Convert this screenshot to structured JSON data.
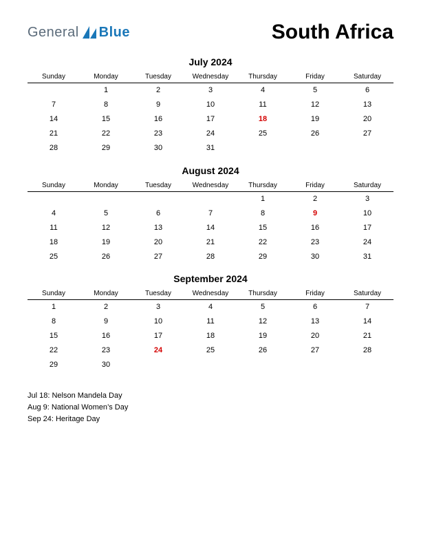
{
  "logo": {
    "word1": "General",
    "word2": "Blue",
    "color1": "#5b6b7a",
    "color2": "#1a77b8",
    "shape_color": "#1a77b8"
  },
  "title": "South Africa",
  "day_headers": [
    "Sunday",
    "Monday",
    "Tuesday",
    "Wednesday",
    "Thursday",
    "Friday",
    "Saturday"
  ],
  "months": [
    {
      "title": "July 2024",
      "weeks": [
        [
          "",
          "1",
          "2",
          "3",
          "4",
          "5",
          "6"
        ],
        [
          "7",
          "8",
          "9",
          "10",
          "11",
          "12",
          "13"
        ],
        [
          "14",
          "15",
          "16",
          "17",
          "18",
          "19",
          "20"
        ],
        [
          "21",
          "22",
          "23",
          "24",
          "25",
          "26",
          "27"
        ],
        [
          "28",
          "29",
          "30",
          "31",
          "",
          "",
          ""
        ]
      ],
      "holidays": [
        [
          2,
          4
        ]
      ]
    },
    {
      "title": "August 2024",
      "weeks": [
        [
          "",
          "",
          "",
          "",
          "1",
          "2",
          "3"
        ],
        [
          "4",
          "5",
          "6",
          "7",
          "8",
          "9",
          "10"
        ],
        [
          "11",
          "12",
          "13",
          "14",
          "15",
          "16",
          "17"
        ],
        [
          "18",
          "19",
          "20",
          "21",
          "22",
          "23",
          "24"
        ],
        [
          "25",
          "26",
          "27",
          "28",
          "29",
          "30",
          "31"
        ]
      ],
      "holidays": [
        [
          1,
          5
        ]
      ]
    },
    {
      "title": "September 2024",
      "weeks": [
        [
          "1",
          "2",
          "3",
          "4",
          "5",
          "6",
          "7"
        ],
        [
          "8",
          "9",
          "10",
          "11",
          "12",
          "13",
          "14"
        ],
        [
          "15",
          "16",
          "17",
          "18",
          "19",
          "20",
          "21"
        ],
        [
          "22",
          "23",
          "24",
          "25",
          "26",
          "27",
          "28"
        ],
        [
          "29",
          "30",
          "",
          "",
          "",
          "",
          ""
        ]
      ],
      "holidays": [
        [
          3,
          2
        ]
      ]
    }
  ],
  "holiday_list": [
    "Jul 18: Nelson Mandela Day",
    "Aug 9: National Women’s Day",
    "Sep 24: Heritage Day"
  ],
  "colors": {
    "holiday_text": "#d40000",
    "text": "#000000",
    "background": "#ffffff"
  }
}
